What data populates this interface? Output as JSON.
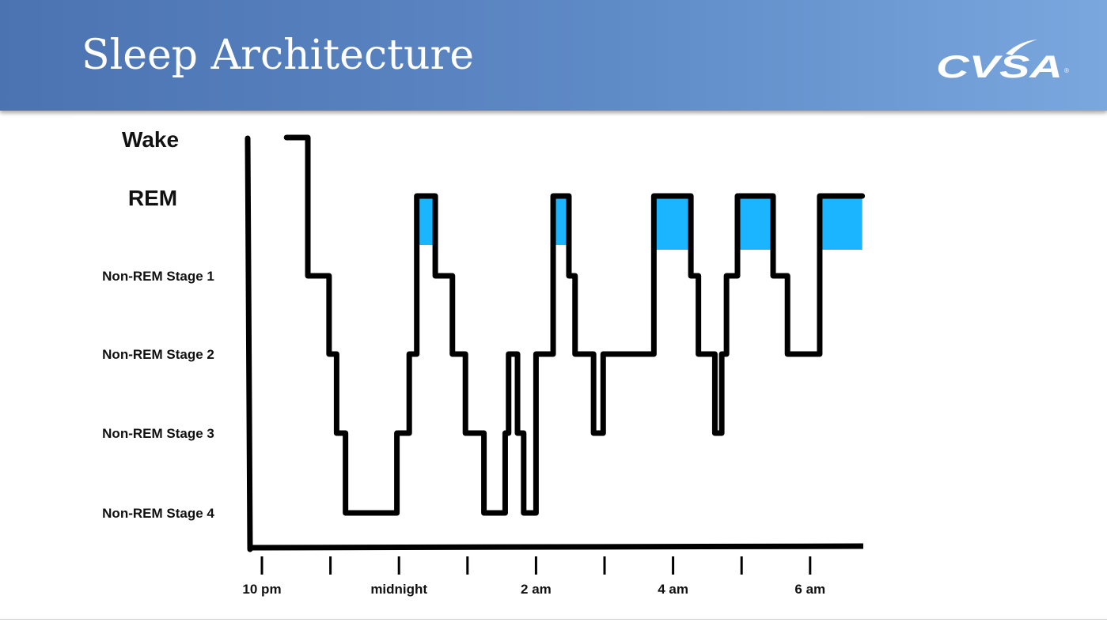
{
  "slide": {
    "title": "Sleep Architecture",
    "logo_text": "CVSA"
  },
  "colors": {
    "header_start": "#4b73b1",
    "header_end": "#7aa7de",
    "rem_fill": "#1ab4ff",
    "line": "#000000"
  },
  "chart_data": {
    "type": "line",
    "title": "Sleep Architecture",
    "xlabel": "",
    "ylabel": "",
    "y_levels": [
      "Wake",
      "REM",
      "Non-REM Stage 1",
      "Non-REM Stage 2",
      "Non-REM Stage 3",
      "Non-REM Stage 4"
    ],
    "x_unit": "hours after 10 pm",
    "xlim": [
      0,
      9
    ],
    "x_ticks": [
      {
        "value": 0,
        "label": "10 pm"
      },
      {
        "value": 1,
        "label": ""
      },
      {
        "value": 2,
        "label": "midnight"
      },
      {
        "value": 3,
        "label": ""
      },
      {
        "value": 4,
        "label": "2 am"
      },
      {
        "value": 5,
        "label": ""
      },
      {
        "value": 6,
        "label": "4 am"
      },
      {
        "value": 7,
        "label": ""
      },
      {
        "value": 8,
        "label": "6 am"
      }
    ],
    "steps": [
      [
        0.36,
        0
      ],
      [
        0.67,
        2
      ],
      [
        0.98,
        3
      ],
      [
        1.09,
        4
      ],
      [
        1.22,
        5
      ],
      [
        1.97,
        4
      ],
      [
        2.15,
        3
      ],
      [
        2.26,
        1
      ],
      [
        2.53,
        2
      ],
      [
        2.78,
        3
      ],
      [
        2.97,
        4
      ],
      [
        3.24,
        5
      ],
      [
        3.55,
        4
      ],
      [
        3.6,
        3
      ],
      [
        3.73,
        4
      ],
      [
        3.82,
        5
      ],
      [
        4.0,
        3
      ],
      [
        4.25,
        1
      ],
      [
        4.48,
        2
      ],
      [
        4.57,
        3
      ],
      [
        4.84,
        4
      ],
      [
        4.98,
        3
      ],
      [
        5.72,
        1
      ],
      [
        6.26,
        2
      ],
      [
        6.37,
        3
      ],
      [
        6.61,
        4
      ],
      [
        6.71,
        3
      ],
      [
        6.78,
        2
      ],
      [
        6.94,
        1
      ],
      [
        7.46,
        2
      ],
      [
        7.67,
        3
      ],
      [
        8.14,
        1
      ]
    ],
    "end": 8.76,
    "rem_highlight": true
  }
}
